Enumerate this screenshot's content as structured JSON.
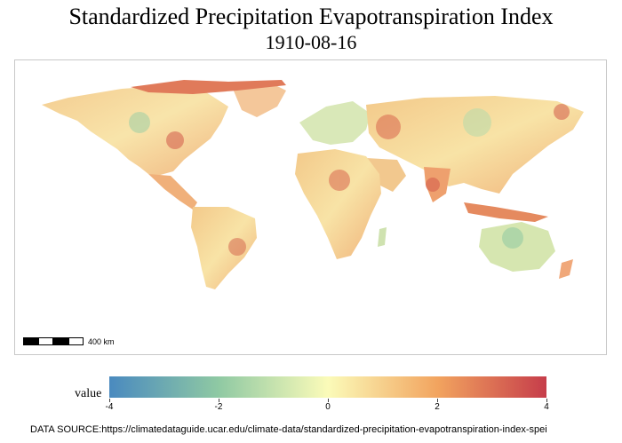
{
  "title": "Standardized Precipitation Evapotranspiration Index",
  "date": "1910-08-16",
  "scale_label": "400 km",
  "legend": {
    "title": "value",
    "min": -4,
    "max": 4,
    "ticks": [
      "-4",
      "-2",
      "0",
      "2",
      "4"
    ],
    "colors": [
      "#4a8abf",
      "#8fc9a3",
      "#fbfbb9",
      "#f2a45f",
      "#c63d4a"
    ]
  },
  "source": "DATA SOURCE:https://climatedataguide.ucar.edu/climate-data/standardized-precipitation-evapotranspiration-index-spei"
}
